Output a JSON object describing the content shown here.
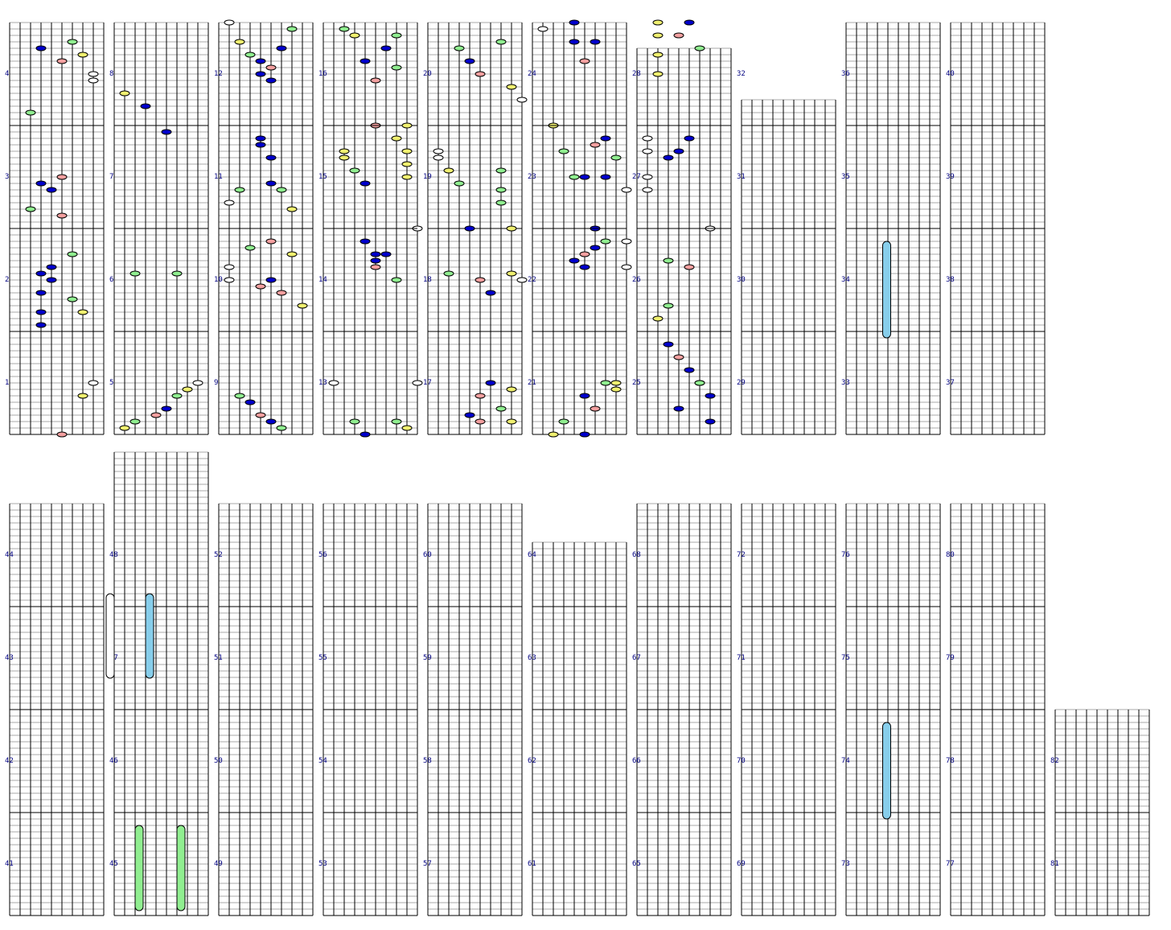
{
  "chart_data": {
    "type": "rhythm-chart",
    "lanes": 8,
    "rows_per_measure": 16,
    "colors": {
      "white": "#ffffff",
      "yellow": "#f0f070",
      "green": "#90ee90",
      "blue": "#0000cc",
      "red": "#f4a0a0",
      "hold_blue": "#87ceeb",
      "hold_green": "#90ee90",
      "hold_white": "#ffffff",
      "label": "#000080"
    },
    "measures": [
      {
        "n": 1,
        "notes": [
          [
            4,
            0,
            "red"
          ],
          [
            6,
            6,
            "yellow"
          ],
          [
            7,
            8,
            "white"
          ]
        ]
      },
      {
        "n": 2,
        "notes": [
          [
            2,
            1,
            "blue"
          ],
          [
            2,
            3,
            "blue"
          ],
          [
            6,
            3,
            "yellow"
          ],
          [
            5,
            5,
            "green"
          ],
          [
            2,
            6,
            "blue"
          ],
          [
            3,
            8,
            "blue"
          ],
          [
            2,
            9,
            "blue"
          ],
          [
            3,
            10,
            "blue"
          ],
          [
            5,
            12,
            "green"
          ]
        ]
      },
      {
        "n": 3,
        "notes": [
          [
            4,
            2,
            "red"
          ],
          [
            1,
            3,
            "green"
          ],
          [
            3,
            6,
            "blue"
          ],
          [
            2,
            7,
            "blue"
          ],
          [
            4,
            8,
            "red"
          ]
        ]
      },
      {
        "n": 4,
        "notes": [
          [
            1,
            2,
            "green"
          ],
          [
            7,
            7,
            "white"
          ],
          [
            7,
            8,
            "white"
          ],
          [
            4,
            10,
            "red"
          ],
          [
            6,
            11,
            "yellow"
          ],
          [
            2,
            12,
            "blue"
          ],
          [
            5,
            13,
            "green"
          ]
        ]
      },
      {
        "n": 5,
        "notes": [
          [
            0,
            1,
            "yellow"
          ],
          [
            1,
            2,
            "green"
          ],
          [
            3,
            3,
            "red"
          ],
          [
            4,
            4,
            "blue"
          ],
          [
            5,
            6,
            "green"
          ],
          [
            6,
            7,
            "yellow"
          ],
          [
            7,
            8,
            "white"
          ]
        ]
      },
      {
        "n": 6,
        "notes": [
          [
            1,
            9,
            "green"
          ],
          [
            5,
            9,
            "green"
          ]
        ]
      },
      {
        "n": 7,
        "notes": [
          [
            4,
            15,
            "blue"
          ]
        ]
      },
      {
        "n": 8,
        "notes": [
          [
            0,
            5,
            "yellow"
          ],
          [
            2,
            3,
            "blue"
          ]
        ]
      },
      {
        "n": 9,
        "notes": [
          [
            1,
            6,
            "green"
          ],
          [
            2,
            5,
            "blue"
          ],
          [
            3,
            3,
            "red"
          ],
          [
            4,
            2,
            "blue"
          ],
          [
            5,
            1,
            "green"
          ]
        ]
      },
      {
        "n": 10,
        "notes": [
          [
            0,
            8,
            "white"
          ],
          [
            0,
            10,
            "white"
          ],
          [
            2,
            13,
            "green"
          ],
          [
            4,
            14,
            "red"
          ],
          [
            3,
            7,
            "red"
          ],
          [
            4,
            8,
            "blue"
          ],
          [
            5,
            6,
            "red"
          ],
          [
            6,
            12,
            "yellow"
          ],
          [
            7,
            4,
            "yellow"
          ]
        ]
      },
      {
        "n": 11,
        "notes": [
          [
            0,
            4,
            "white"
          ],
          [
            1,
            6,
            "green"
          ],
          [
            3,
            14,
            "blue"
          ],
          [
            5,
            6,
            "green"
          ],
          [
            6,
            3,
            "yellow"
          ],
          [
            4,
            11,
            "blue"
          ],
          [
            4,
            7,
            "blue"
          ],
          [
            3,
            13,
            "blue"
          ]
        ]
      },
      {
        "n": 12,
        "notes": [
          [
            0,
            16,
            "white"
          ],
          [
            1,
            13,
            "yellow"
          ],
          [
            2,
            11,
            "green"
          ],
          [
            3,
            10,
            "blue"
          ],
          [
            4,
            9,
            "red"
          ],
          [
            3,
            8,
            "blue"
          ],
          [
            4,
            7,
            "blue"
          ],
          [
            6,
            15,
            "green"
          ],
          [
            5,
            12,
            "blue"
          ]
        ]
      },
      {
        "n": 13,
        "notes": [
          [
            0,
            8,
            "white"
          ],
          [
            2,
            2,
            "green"
          ],
          [
            3,
            0,
            "blue"
          ],
          [
            6,
            2,
            "green"
          ],
          [
            7,
            1,
            "yellow"
          ],
          [
            8,
            8,
            "white"
          ]
        ]
      },
      {
        "n": 14,
        "notes": [
          [
            3,
            14,
            "blue"
          ],
          [
            4,
            12,
            "blue"
          ],
          [
            4,
            11,
            "blue"
          ],
          [
            5,
            12,
            "blue"
          ],
          [
            4,
            10,
            "red"
          ],
          [
            6,
            8,
            "green"
          ],
          [
            8,
            16,
            "white"
          ]
        ]
      },
      {
        "n": 15,
        "notes": [
          [
            1,
            12,
            "yellow"
          ],
          [
            1,
            11,
            "yellow"
          ],
          [
            2,
            9,
            "green"
          ],
          [
            3,
            7,
            "blue"
          ],
          [
            4,
            16,
            "red"
          ],
          [
            6,
            14,
            "yellow"
          ],
          [
            7,
            12,
            "yellow"
          ],
          [
            7,
            10,
            "yellow"
          ],
          [
            7,
            8,
            "yellow"
          ]
        ]
      },
      {
        "n": 16,
        "notes": [
          [
            1,
            15,
            "green"
          ],
          [
            2,
            14,
            "yellow"
          ],
          [
            3,
            10,
            "blue"
          ],
          [
            4,
            7,
            "red"
          ],
          [
            5,
            12,
            "blue"
          ],
          [
            6,
            14,
            "green"
          ],
          [
            6,
            9,
            "green"
          ],
          [
            7,
            0,
            "yellow"
          ]
        ]
      },
      {
        "n": 17,
        "notes": [
          [
            3,
            3,
            "blue"
          ],
          [
            4,
            2,
            "red"
          ],
          [
            4,
            6,
            "red"
          ],
          [
            5,
            8,
            "blue"
          ],
          [
            6,
            4,
            "green"
          ],
          [
            7,
            7,
            "yellow"
          ],
          [
            7,
            2,
            "yellow"
          ]
        ]
      },
      {
        "n": 18,
        "notes": [
          [
            1,
            9,
            "green"
          ],
          [
            4,
            8,
            "red"
          ],
          [
            5,
            6,
            "blue"
          ],
          [
            7,
            9,
            "yellow"
          ],
          [
            8,
            8,
            "white"
          ]
        ]
      },
      {
        "n": 19,
        "notes": [
          [
            0,
            12,
            "white"
          ],
          [
            0,
            11,
            "white"
          ],
          [
            1,
            9,
            "yellow"
          ],
          [
            2,
            7,
            "green"
          ],
          [
            3,
            0,
            "blue"
          ],
          [
            6,
            9,
            "green"
          ],
          [
            6,
            6,
            "green"
          ],
          [
            6,
            4,
            "green"
          ],
          [
            7,
            0,
            "yellow"
          ]
        ]
      },
      {
        "n": 20,
        "notes": [
          [
            2,
            12,
            "green"
          ],
          [
            3,
            10,
            "blue"
          ],
          [
            4,
            8,
            "red"
          ],
          [
            6,
            13,
            "green"
          ],
          [
            7,
            6,
            "yellow"
          ],
          [
            8,
            4,
            "white"
          ]
        ]
      },
      {
        "n": 21,
        "notes": [
          [
            1,
            0,
            "yellow"
          ],
          [
            2,
            2,
            "green"
          ],
          [
            4,
            0,
            "blue"
          ],
          [
            4,
            6,
            "blue"
          ],
          [
            5,
            4,
            "red"
          ],
          [
            6,
            8,
            "green"
          ],
          [
            7,
            8,
            "yellow"
          ],
          [
            7,
            7,
            "yellow"
          ]
        ]
      },
      {
        "n": 22,
        "notes": [
          [
            3,
            11,
            "blue"
          ],
          [
            4,
            12,
            "red"
          ],
          [
            4,
            10,
            "blue"
          ],
          [
            5,
            13,
            "blue"
          ],
          [
            5,
            16,
            "blue"
          ],
          [
            6,
            14,
            "green"
          ],
          [
            8,
            14,
            "white"
          ],
          [
            8,
            10,
            "white"
          ]
        ]
      },
      {
        "n": 23,
        "notes": [
          [
            1,
            16,
            "yellow"
          ],
          [
            2,
            12,
            "green"
          ],
          [
            3,
            8,
            "green"
          ],
          [
            4,
            8,
            "blue"
          ],
          [
            5,
            13,
            "red"
          ],
          [
            6,
            14,
            "blue"
          ],
          [
            6,
            8,
            "blue"
          ],
          [
            7,
            11,
            "green"
          ],
          [
            8,
            6,
            "white"
          ]
        ]
      },
      {
        "n": 24,
        "notes": [
          [
            0,
            15,
            "white"
          ],
          [
            3,
            16,
            "blue"
          ],
          [
            3,
            13,
            "blue"
          ],
          [
            4,
            10,
            "red"
          ],
          [
            5,
            13,
            "blue"
          ]
        ]
      },
      {
        "n": 25,
        "notes": [
          [
            2,
            14,
            "blue"
          ],
          [
            3,
            12,
            "red"
          ],
          [
            4,
            10,
            "blue"
          ],
          [
            5,
            8,
            "yellow"
          ],
          [
            6,
            6,
            "blue"
          ],
          [
            3,
            4,
            "blue"
          ],
          [
            5,
            8,
            "green"
          ],
          [
            6,
            2,
            "blue"
          ]
        ]
      },
      {
        "n": 26,
        "notes": [
          [
            1,
            2,
            "yellow"
          ],
          [
            2,
            4,
            "green"
          ],
          [
            2,
            11,
            "green"
          ],
          [
            4,
            10,
            "red"
          ],
          [
            6,
            16,
            "white"
          ]
        ]
      },
      {
        "n": 27,
        "notes": [
          [
            0,
            14,
            "white"
          ],
          [
            0,
            12,
            "white"
          ],
          [
            0,
            8,
            "white"
          ],
          [
            0,
            6,
            "white"
          ],
          [
            2,
            11,
            "blue"
          ],
          [
            3,
            12,
            "blue"
          ],
          [
            4,
            14,
            "blue"
          ]
        ]
      },
      {
        "n": 28,
        "notes": [
          [
            1,
            14,
            "yellow"
          ],
          [
            1,
            11,
            "yellow"
          ],
          [
            1,
            8,
            "yellow"
          ],
          [
            3,
            14,
            "red"
          ],
          [
            4,
            16,
            "blue"
          ],
          [
            5,
            12,
            "green"
          ],
          [
            1,
            16,
            "yellow"
          ]
        ]
      }
    ]
  }
}
